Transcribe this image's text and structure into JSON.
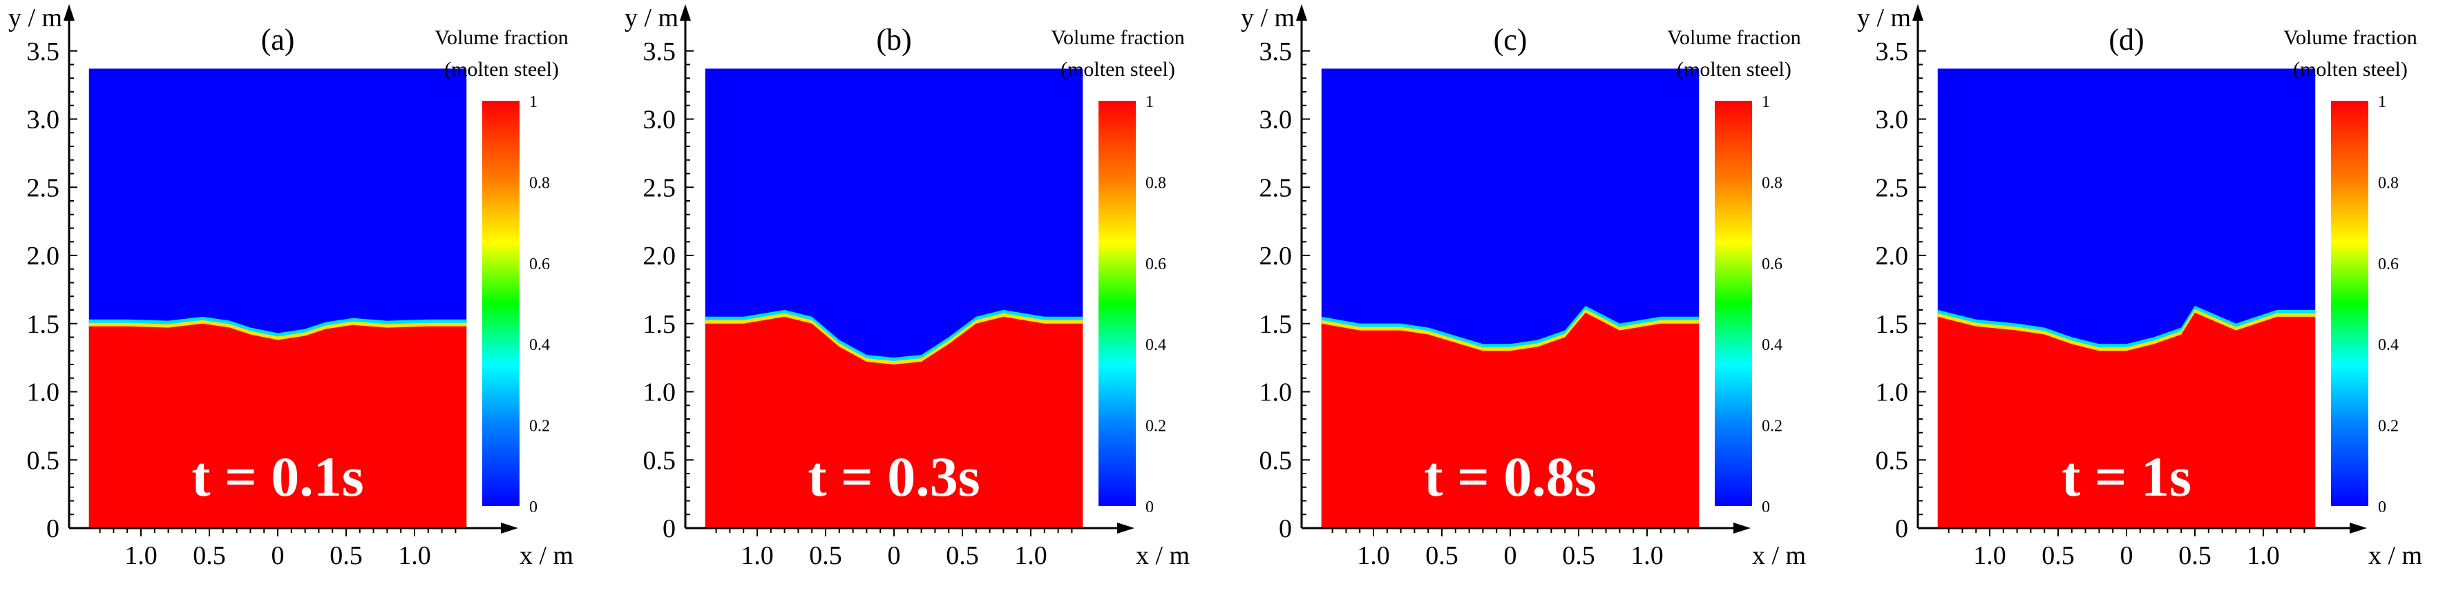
{
  "chart_data": [
    {
      "type": "heatmap",
      "panel_label": "(a)",
      "time_label": "t = 0.1s",
      "quantity": "Volume fraction of molten steel",
      "x_label": "x / m",
      "y_label": "y / m",
      "x_tick_labels": [
        "1.0",
        "0.5",
        "0",
        "0.5",
        "1.0"
      ],
      "x_tick_values": [
        -1.0,
        -0.5,
        0,
        0.5,
        1.0
      ],
      "y_tick_labels": [
        "0",
        "0.5",
        "1.0",
        "1.5",
        "2.0",
        "2.5",
        "3.0",
        "3.5"
      ],
      "y_tick_values": [
        0,
        0.5,
        1.0,
        1.5,
        2.0,
        2.5,
        3.0,
        3.5
      ],
      "domain_x": [
        -1.38,
        1.38
      ],
      "domain_y": [
        0,
        3.37
      ],
      "interface_x": [
        -1.38,
        -1.1,
        -0.8,
        -0.55,
        -0.35,
        -0.2,
        0,
        0.2,
        0.35,
        0.55,
        0.8,
        1.1,
        1.38
      ],
      "interface_y": [
        1.48,
        1.48,
        1.47,
        1.5,
        1.47,
        1.42,
        1.38,
        1.41,
        1.46,
        1.49,
        1.47,
        1.48,
        1.48
      ],
      "colorbar": {
        "title_line1": "Volume fraction",
        "title_line2": "(molten steel)",
        "max_label": "1",
        "ticks": [
          "0",
          "0.2",
          "0.4",
          "0.6",
          "0.8"
        ]
      }
    },
    {
      "type": "heatmap",
      "panel_label": "(b)",
      "time_label": "t = 0.3s",
      "quantity": "Volume fraction of molten steel",
      "x_label": "x / m",
      "y_label": "y / m",
      "x_tick_labels": [
        "1.0",
        "0.5",
        "0",
        "0.5",
        "1.0"
      ],
      "x_tick_values": [
        -1.0,
        -0.5,
        0,
        0.5,
        1.0
      ],
      "y_tick_labels": [
        "0",
        "0.5",
        "1.0",
        "1.5",
        "2.0",
        "2.5",
        "3.0",
        "3.5"
      ],
      "y_tick_values": [
        0,
        0.5,
        1.0,
        1.5,
        2.0,
        2.5,
        3.0,
        3.5
      ],
      "domain_x": [
        -1.38,
        1.38
      ],
      "domain_y": [
        0,
        3.37
      ],
      "interface_x": [
        -1.38,
        -1.1,
        -0.8,
        -0.6,
        -0.4,
        -0.2,
        0,
        0.2,
        0.4,
        0.6,
        0.8,
        1.1,
        1.38
      ],
      "interface_y": [
        1.5,
        1.5,
        1.55,
        1.5,
        1.33,
        1.22,
        1.2,
        1.22,
        1.35,
        1.5,
        1.55,
        1.5,
        1.5
      ],
      "colorbar": {
        "title_line1": "Volume fraction",
        "title_line2": "(molten steel)",
        "max_label": "1",
        "ticks": [
          "0",
          "0.2",
          "0.4",
          "0.6",
          "0.8"
        ]
      }
    },
    {
      "type": "heatmap",
      "panel_label": "(c)",
      "time_label": "t = 0.8s",
      "quantity": "Volume fraction of molten steel",
      "x_label": "x / m",
      "y_label": "y / m",
      "x_tick_labels": [
        "1.0",
        "0.5",
        "0",
        "0.5",
        "1.0"
      ],
      "x_tick_values": [
        -1.0,
        -0.5,
        0,
        0.5,
        1.0
      ],
      "y_tick_labels": [
        "0",
        "0.5",
        "1.0",
        "1.5",
        "2.0",
        "2.5",
        "3.0",
        "3.5"
      ],
      "y_tick_values": [
        0,
        0.5,
        1.0,
        1.5,
        2.0,
        2.5,
        3.0,
        3.5
      ],
      "domain_x": [
        -1.38,
        1.38
      ],
      "domain_y": [
        0,
        3.37
      ],
      "interface_x": [
        -1.38,
        -1.1,
        -0.8,
        -0.6,
        -0.4,
        -0.2,
        0,
        0.2,
        0.4,
        0.55,
        0.8,
        1.1,
        1.38
      ],
      "interface_y": [
        1.5,
        1.45,
        1.45,
        1.42,
        1.36,
        1.3,
        1.3,
        1.33,
        1.4,
        1.58,
        1.45,
        1.5,
        1.5
      ],
      "colorbar": {
        "title_line1": "Volume fraction",
        "title_line2": "(molten steel)",
        "max_label": "1",
        "ticks": [
          "0",
          "0.2",
          "0.4",
          "0.6",
          "0.8"
        ]
      }
    },
    {
      "type": "heatmap",
      "panel_label": "(d)",
      "time_label": "t = 1s",
      "quantity": "Volume fraction of molten steel",
      "x_label": "x / m",
      "y_label": "y / m",
      "x_tick_labels": [
        "1.0",
        "0.5",
        "0",
        "0.5",
        "1.0"
      ],
      "x_tick_values": [
        -1.0,
        -0.5,
        0,
        0.5,
        1.0
      ],
      "y_tick_labels": [
        "0",
        "0.5",
        "1.0",
        "1.5",
        "2.0",
        "2.5",
        "3.0",
        "3.5"
      ],
      "y_tick_values": [
        0,
        0.5,
        1.0,
        1.5,
        2.0,
        2.5,
        3.0,
        3.5
      ],
      "domain_x": [
        -1.38,
        1.38
      ],
      "domain_y": [
        0,
        3.37
      ],
      "interface_x": [
        -1.38,
        -1.1,
        -0.8,
        -0.6,
        -0.4,
        -0.2,
        0,
        0.2,
        0.4,
        0.5,
        0.8,
        1.1,
        1.38
      ],
      "interface_y": [
        1.55,
        1.48,
        1.45,
        1.42,
        1.35,
        1.3,
        1.3,
        1.35,
        1.42,
        1.58,
        1.45,
        1.55,
        1.55
      ],
      "colorbar": {
        "title_line1": "Volume fraction",
        "title_line2": "(molten steel)",
        "max_label": "1",
        "ticks": [
          "0",
          "0.2",
          "0.4",
          "0.6",
          "0.8"
        ]
      }
    }
  ]
}
